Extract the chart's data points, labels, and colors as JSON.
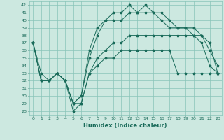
{
  "x": [
    0,
    1,
    2,
    3,
    4,
    5,
    6,
    7,
    8,
    9,
    10,
    11,
    12,
    13,
    14,
    15,
    16,
    17,
    18,
    19,
    20,
    21,
    22,
    23
  ],
  "line1": [
    37,
    33,
    32,
    33,
    32,
    29,
    30,
    36,
    39,
    40,
    41,
    41,
    42,
    41,
    42,
    41,
    41,
    40,
    39,
    39,
    38,
    38,
    37,
    33
  ],
  "line2": [
    37,
    32,
    32,
    33,
    32,
    29,
    30,
    35,
    38,
    40,
    40,
    40,
    41,
    41,
    41,
    41,
    40,
    39,
    39,
    39,
    39,
    38,
    36,
    34
  ],
  "line3": [
    37,
    32,
    32,
    33,
    32,
    29,
    29,
    33,
    35,
    36,
    37,
    37,
    38,
    38,
    38,
    38,
    38,
    38,
    38,
    38,
    38,
    37,
    34,
    33
  ],
  "line4": [
    37,
    32,
    32,
    33,
    32,
    28,
    29,
    33,
    34,
    35,
    35,
    36,
    36,
    36,
    36,
    36,
    36,
    36,
    33,
    33,
    33,
    33,
    33,
    33
  ],
  "bg_color": "#cce8e0",
  "grid_color": "#88c4b8",
  "line_color": "#1a6b5a",
  "xlabel": "Humidex (Indice chaleur)",
  "ylim": [
    27.5,
    42.5
  ],
  "xlim": [
    -0.5,
    23.5
  ],
  "yticks": [
    28,
    29,
    30,
    31,
    32,
    33,
    34,
    35,
    36,
    37,
    38,
    39,
    40,
    41,
    42
  ],
  "xticks": [
    0,
    1,
    2,
    3,
    4,
    5,
    6,
    7,
    8,
    9,
    10,
    11,
    12,
    13,
    14,
    15,
    16,
    17,
    18,
    19,
    20,
    21,
    22,
    23
  ]
}
